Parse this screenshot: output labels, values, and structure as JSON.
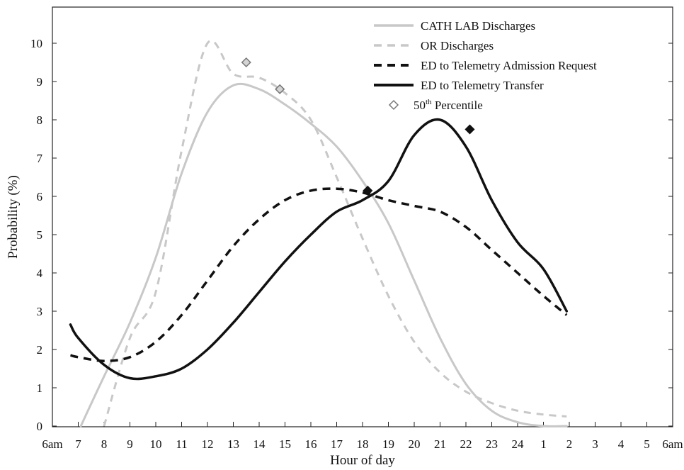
{
  "chart_data": {
    "type": "line",
    "title": "",
    "xlabel": "Hour of day",
    "ylabel": "Probability (%)",
    "x_ticks": [
      "6am",
      "7",
      "8",
      "9",
      "10",
      "11",
      "12",
      "13",
      "14",
      "15",
      "16",
      "17",
      "18",
      "19",
      "20",
      "21",
      "22",
      "23",
      "24",
      "1",
      "2",
      "3",
      "4",
      "5",
      "6am"
    ],
    "x_unit": "hours after 6am",
    "xlim": [
      0,
      24
    ],
    "ylim": [
      0,
      10.5
    ],
    "y_ticks": [
      0,
      1,
      2,
      3,
      4,
      5,
      6,
      7,
      8,
      9,
      10
    ],
    "grid": false,
    "legend_position": "top-right",
    "series": [
      {
        "name": "CATH LAB Discharges",
        "color": "#c8c8c8",
        "style": "solid",
        "points": [
          [
            1.1,
            0.0
          ],
          [
            2,
            1.3
          ],
          [
            3,
            2.7
          ],
          [
            4,
            4.4
          ],
          [
            5,
            6.6
          ],
          [
            6,
            8.2
          ],
          [
            7,
            8.9
          ],
          [
            8,
            8.8
          ],
          [
            9,
            8.4
          ],
          [
            10,
            7.9
          ],
          [
            11,
            7.3
          ],
          [
            12,
            6.4
          ],
          [
            13,
            5.3
          ],
          [
            14,
            3.8
          ],
          [
            15,
            2.3
          ],
          [
            16,
            1.1
          ],
          [
            17,
            0.4
          ],
          [
            18,
            0.1
          ],
          [
            19,
            0.0
          ],
          [
            19.9,
            0.0
          ]
        ],
        "median_marker": [
          8.8,
          8.8
        ]
      },
      {
        "name": "OR Discharges",
        "color": "#c8c8c8",
        "style": "dashed",
        "points": [
          [
            2,
            0.0
          ],
          [
            3,
            2.3
          ],
          [
            4,
            3.5
          ],
          [
            5,
            7.2
          ],
          [
            6,
            10.0
          ],
          [
            7,
            9.2
          ],
          [
            8,
            9.1
          ],
          [
            9,
            8.7
          ],
          [
            10,
            8.0
          ],
          [
            11,
            6.5
          ],
          [
            12,
            4.9
          ],
          [
            13,
            3.4
          ],
          [
            14,
            2.2
          ],
          [
            15,
            1.4
          ],
          [
            16,
            0.9
          ],
          [
            17,
            0.6
          ],
          [
            18,
            0.4
          ],
          [
            19,
            0.3
          ],
          [
            19.9,
            0.25
          ]
        ],
        "median_marker": [
          7.5,
          9.5
        ]
      },
      {
        "name": "ED to Telemetry Admission Request",
        "color": "#111111",
        "style": "dashed",
        "points": [
          [
            0.7,
            1.85
          ],
          [
            1,
            1.8
          ],
          [
            2,
            1.7
          ],
          [
            3,
            1.8
          ],
          [
            4,
            2.2
          ],
          [
            5,
            2.9
          ],
          [
            6,
            3.8
          ],
          [
            7,
            4.7
          ],
          [
            8,
            5.4
          ],
          [
            9,
            5.9
          ],
          [
            10,
            6.15
          ],
          [
            11,
            6.2
          ],
          [
            12,
            6.1
          ],
          [
            13,
            5.9
          ],
          [
            14,
            5.75
          ],
          [
            15,
            5.6
          ],
          [
            16,
            5.2
          ],
          [
            17,
            4.6
          ],
          [
            18,
            4.0
          ],
          [
            19,
            3.4
          ],
          [
            19.9,
            2.9
          ]
        ],
        "median_marker": [
          12.2,
          6.15
        ]
      },
      {
        "name": "ED to Telemetry Transfer",
        "color": "#111111",
        "style": "solid",
        "points": [
          [
            0.7,
            2.65
          ],
          [
            1,
            2.3
          ],
          [
            2,
            1.6
          ],
          [
            3,
            1.25
          ],
          [
            4,
            1.3
          ],
          [
            5,
            1.5
          ],
          [
            6,
            2.0
          ],
          [
            7,
            2.7
          ],
          [
            8,
            3.5
          ],
          [
            9,
            4.3
          ],
          [
            10,
            5.0
          ],
          [
            11,
            5.6
          ],
          [
            12,
            5.9
          ],
          [
            13,
            6.4
          ],
          [
            14,
            7.6
          ],
          [
            15,
            8.0
          ],
          [
            16,
            7.3
          ],
          [
            17,
            5.9
          ],
          [
            18,
            4.8
          ],
          [
            19,
            4.1
          ],
          [
            19.9,
            3.0
          ]
        ],
        "median_marker": [
          16.15,
          7.75
        ]
      }
    ],
    "legend": {
      "entries": [
        {
          "label": "CATH LAB Discharges",
          "color": "#c8c8c8",
          "style": "solid"
        },
        {
          "label": "OR Discharges",
          "color": "#c8c8c8",
          "style": "dashed"
        },
        {
          "label": "ED to Telemetry Admission Request",
          "color": "#111111",
          "style": "dashed"
        },
        {
          "label": "ED to Telemetry Transfer",
          "color": "#111111",
          "style": "solid"
        },
        {
          "label_main": "50",
          "label_sup": "th",
          "label_rest": " Percentile",
          "color": "#888888",
          "style": "marker"
        }
      ]
    }
  }
}
